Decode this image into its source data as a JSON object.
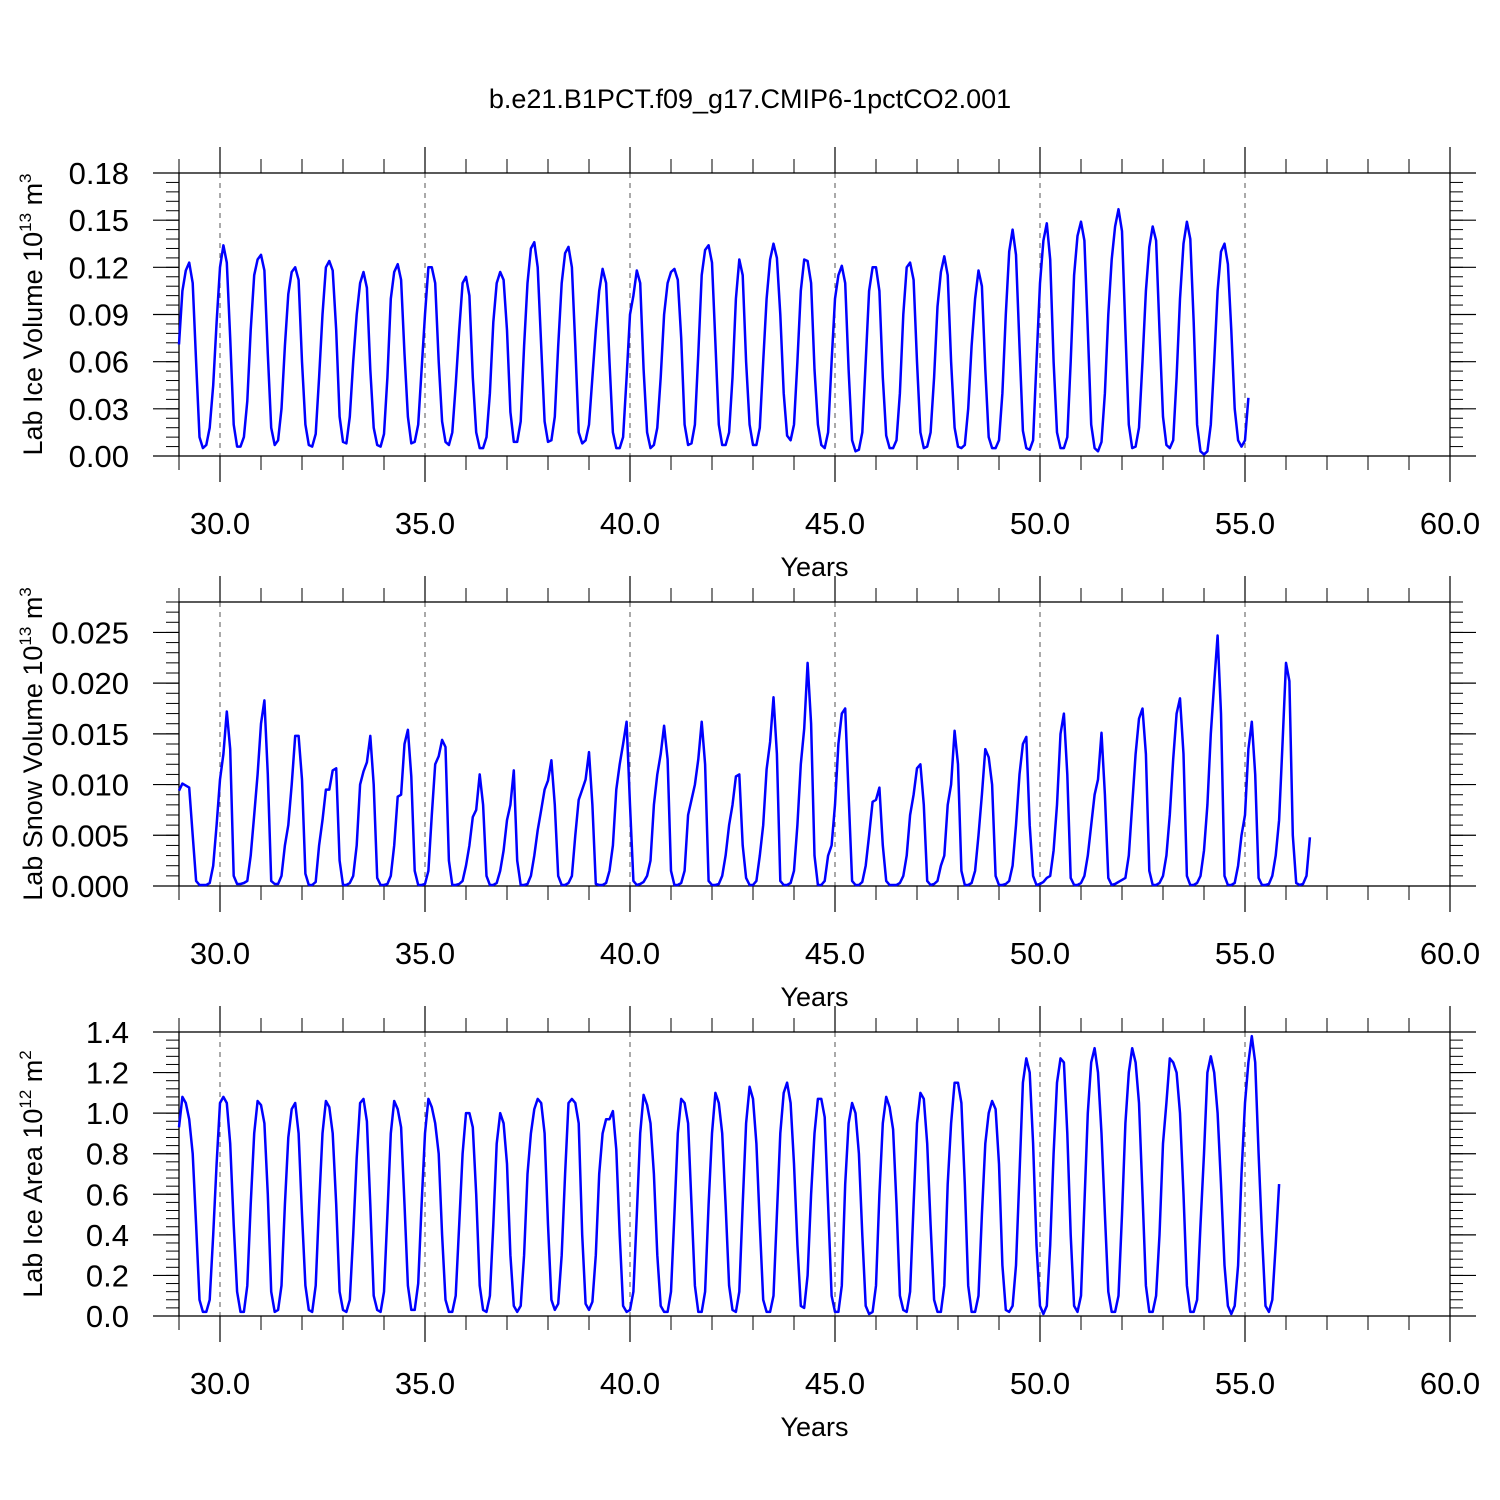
{
  "title": "b.e21.B1PCT.f09_g17.CMIP6-1pctCO2.001",
  "line_color": "#0000ff",
  "chart_data": [
    {
      "type": "line",
      "xlabel": "Years",
      "ylabel": {
        "text": "Lab Ice Volume 10",
        "exp": "13",
        "unit": " m",
        "unit_exp": "3"
      },
      "xlim": [
        29.0,
        60.0
      ],
      "ylim": [
        0.0,
        0.18
      ],
      "x_ticks": [
        30,
        35,
        40,
        45,
        50,
        55,
        60
      ],
      "x_tick_labels": [
        "30.0",
        "35.0",
        "40.0",
        "45.0",
        "50.0",
        "55.0",
        "60.0"
      ],
      "y_ticks": [
        0.0,
        0.03,
        0.06,
        0.09,
        0.12,
        0.15,
        0.18
      ],
      "y_tick_labels": [
        "0.00",
        "0.03",
        "0.06",
        "0.09",
        "0.12",
        "0.15",
        "0.18"
      ],
      "x_start": 29.0,
      "x_step": 0.08333,
      "values": [
        0.071,
        0.105,
        0.118,
        0.123,
        0.11,
        0.06,
        0.012,
        0.005,
        0.007,
        0.018,
        0.045,
        0.085,
        0.12,
        0.134,
        0.123,
        0.075,
        0.02,
        0.006,
        0.006,
        0.012,
        0.035,
        0.08,
        0.115,
        0.125,
        0.128,
        0.118,
        0.065,
        0.018,
        0.007,
        0.01,
        0.03,
        0.07,
        0.103,
        0.117,
        0.12,
        0.112,
        0.06,
        0.02,
        0.007,
        0.006,
        0.014,
        0.05,
        0.09,
        0.12,
        0.124,
        0.118,
        0.08,
        0.025,
        0.009,
        0.008,
        0.025,
        0.06,
        0.09,
        0.11,
        0.117,
        0.107,
        0.055,
        0.018,
        0.007,
        0.006,
        0.014,
        0.05,
        0.1,
        0.117,
        0.122,
        0.112,
        0.065,
        0.025,
        0.008,
        0.009,
        0.02,
        0.055,
        0.09,
        0.12,
        0.12,
        0.11,
        0.06,
        0.022,
        0.009,
        0.007,
        0.015,
        0.045,
        0.08,
        0.11,
        0.114,
        0.102,
        0.05,
        0.015,
        0.005,
        0.005,
        0.012,
        0.04,
        0.085,
        0.11,
        0.117,
        0.112,
        0.08,
        0.028,
        0.009,
        0.009,
        0.022,
        0.07,
        0.11,
        0.132,
        0.136,
        0.12,
        0.07,
        0.022,
        0.009,
        0.01,
        0.025,
        0.07,
        0.11,
        0.129,
        0.133,
        0.12,
        0.07,
        0.015,
        0.008,
        0.01,
        0.02,
        0.05,
        0.08,
        0.105,
        0.119,
        0.11,
        0.06,
        0.015,
        0.005,
        0.005,
        0.012,
        0.05,
        0.09,
        0.102,
        0.118,
        0.11,
        0.055,
        0.015,
        0.005,
        0.007,
        0.018,
        0.05,
        0.09,
        0.11,
        0.117,
        0.119,
        0.112,
        0.075,
        0.02,
        0.007,
        0.008,
        0.02,
        0.065,
        0.115,
        0.131,
        0.134,
        0.123,
        0.072,
        0.02,
        0.007,
        0.007,
        0.015,
        0.05,
        0.1,
        0.125,
        0.115,
        0.06,
        0.02,
        0.007,
        0.007,
        0.018,
        0.06,
        0.1,
        0.125,
        0.135,
        0.126,
        0.09,
        0.04,
        0.013,
        0.01,
        0.02,
        0.06,
        0.105,
        0.125,
        0.124,
        0.11,
        0.055,
        0.02,
        0.007,
        0.005,
        0.015,
        0.06,
        0.1,
        0.115,
        0.121,
        0.11,
        0.055,
        0.01,
        0.003,
        0.004,
        0.015,
        0.06,
        0.105,
        0.12,
        0.12,
        0.105,
        0.05,
        0.013,
        0.005,
        0.005,
        0.01,
        0.04,
        0.09,
        0.12,
        0.123,
        0.112,
        0.06,
        0.015,
        0.005,
        0.006,
        0.015,
        0.05,
        0.095,
        0.117,
        0.127,
        0.115,
        0.06,
        0.018,
        0.006,
        0.005,
        0.007,
        0.03,
        0.07,
        0.1,
        0.118,
        0.108,
        0.055,
        0.012,
        0.005,
        0.005,
        0.01,
        0.04,
        0.09,
        0.13,
        0.144,
        0.128,
        0.07,
        0.016,
        0.005,
        0.004,
        0.01,
        0.06,
        0.11,
        0.137,
        0.148,
        0.125,
        0.06,
        0.015,
        0.005,
        0.005,
        0.012,
        0.06,
        0.115,
        0.14,
        0.149,
        0.137,
        0.08,
        0.02,
        0.005,
        0.003,
        0.009,
        0.04,
        0.09,
        0.125,
        0.146,
        0.157,
        0.143,
        0.08,
        0.02,
        0.005,
        0.006,
        0.018,
        0.06,
        0.105,
        0.133,
        0.146,
        0.137,
        0.08,
        0.025,
        0.007,
        0.005,
        0.01,
        0.05,
        0.1,
        0.135,
        0.149,
        0.138,
        0.085,
        0.02,
        0.003,
        0.001,
        0.003,
        0.02,
        0.06,
        0.105,
        0.13,
        0.135,
        0.122,
        0.08,
        0.03,
        0.01,
        0.006,
        0.01,
        0.037
      ]
    },
    {
      "type": "line",
      "xlabel": "Years",
      "ylabel": {
        "text": "Lab Snow Volume 10",
        "exp": "13",
        "unit": " m",
        "unit_exp": "3"
      },
      "xlim": [
        29.0,
        60.0
      ],
      "ylim": [
        0.0,
        0.028
      ],
      "x_ticks": [
        30,
        35,
        40,
        45,
        50,
        55,
        60
      ],
      "x_tick_labels": [
        "30.0",
        "35.0",
        "40.0",
        "45.0",
        "50.0",
        "55.0",
        "60.0"
      ],
      "y_ticks": [
        0.0,
        0.005,
        0.01,
        0.015,
        0.02,
        0.025
      ],
      "y_tick_labels": [
        "0.000",
        "0.005",
        "0.010",
        "0.015",
        "0.020",
        "0.025"
      ],
      "x_start": 29.0,
      "x_step": 0.08333,
      "values": [
        0.0094,
        0.0101,
        0.0099,
        0.0097,
        0.005,
        0.0005,
        0.0001,
        0.0001,
        0.0001,
        0.0003,
        0.002,
        0.006,
        0.0105,
        0.013,
        0.0172,
        0.0135,
        0.001,
        0.0002,
        0.0002,
        0.0003,
        0.0005,
        0.003,
        0.007,
        0.011,
        0.016,
        0.0183,
        0.011,
        0.0005,
        0.0002,
        0.0002,
        0.001,
        0.004,
        0.006,
        0.01,
        0.0148,
        0.0148,
        0.0105,
        0.0012,
        0.0001,
        0.0001,
        0.0004,
        0.004,
        0.0065,
        0.0095,
        0.0095,
        0.0114,
        0.0116,
        0.0025,
        0.0001,
        0.0001,
        0.0003,
        0.001,
        0.004,
        0.01,
        0.0113,
        0.0122,
        0.0148,
        0.01,
        0.0008,
        0.0001,
        0.0001,
        0.0002,
        0.001,
        0.004,
        0.0088,
        0.009,
        0.014,
        0.0154,
        0.0108,
        0.0015,
        0.0001,
        0.0001,
        0.0002,
        0.0015,
        0.007,
        0.012,
        0.0128,
        0.0144,
        0.0137,
        0.0025,
        0.0001,
        0.0001,
        0.0002,
        0.0005,
        0.002,
        0.004,
        0.0068,
        0.0075,
        0.011,
        0.008,
        0.001,
        0.0001,
        0.0001,
        0.0003,
        0.0015,
        0.0035,
        0.0065,
        0.008,
        0.0114,
        0.0025,
        0.0001,
        0.0001,
        0.0002,
        0.001,
        0.003,
        0.0055,
        0.0075,
        0.0095,
        0.0104,
        0.0124,
        0.008,
        0.001,
        0.0001,
        0.0001,
        0.0003,
        0.001,
        0.005,
        0.0085,
        0.0095,
        0.0105,
        0.0132,
        0.008,
        0.0002,
        0.0001,
        0.0001,
        0.0003,
        0.0015,
        0.004,
        0.0095,
        0.012,
        0.014,
        0.0162,
        0.008,
        0.0005,
        0.0001,
        0.0002,
        0.0004,
        0.001,
        0.0025,
        0.008,
        0.011,
        0.013,
        0.0158,
        0.0125,
        0.0015,
        0.0001,
        0.0001,
        0.0003,
        0.0015,
        0.007,
        0.0085,
        0.01,
        0.0125,
        0.0162,
        0.012,
        0.0005,
        0.0001,
        0.0001,
        0.0002,
        0.001,
        0.003,
        0.006,
        0.008,
        0.0108,
        0.011,
        0.004,
        0.0008,
        0.0001,
        0.0001,
        0.0005,
        0.003,
        0.006,
        0.0115,
        0.0142,
        0.0186,
        0.013,
        0.0005,
        0.0001,
        0.0001,
        0.0003,
        0.0015,
        0.006,
        0.012,
        0.0155,
        0.022,
        0.016,
        0.003,
        0.0001,
        0.0001,
        0.0005,
        0.003,
        0.004,
        0.008,
        0.014,
        0.017,
        0.0175,
        0.009,
        0.0005,
        0.0001,
        0.0001,
        0.0004,
        0.002,
        0.005,
        0.0083,
        0.0085,
        0.0097,
        0.004,
        0.0005,
        0.0001,
        0.0001,
        0.0001,
        0.0003,
        0.001,
        0.003,
        0.007,
        0.009,
        0.0116,
        0.012,
        0.008,
        0.0005,
        0.0001,
        0.0002,
        0.0005,
        0.002,
        0.003,
        0.008,
        0.01,
        0.0153,
        0.012,
        0.0015,
        0.0001,
        0.0001,
        0.0003,
        0.0015,
        0.005,
        0.009,
        0.0135,
        0.0127,
        0.01,
        0.001,
        0.0001,
        0.0001,
        0.0002,
        0.0005,
        0.002,
        0.006,
        0.011,
        0.014,
        0.0147,
        0.006,
        0.001,
        0.0001,
        0.0002,
        0.0004,
        0.0008,
        0.001,
        0.0035,
        0.008,
        0.015,
        0.017,
        0.011,
        0.0008,
        0.0001,
        0.0001,
        0.0003,
        0.001,
        0.003,
        0.006,
        0.009,
        0.0105,
        0.0151,
        0.009,
        0.0008,
        0.0001,
        0.0002,
        0.0004,
        0.0006,
        0.0008,
        0.003,
        0.008,
        0.013,
        0.0165,
        0.0175,
        0.013,
        0.0015,
        0.0001,
        0.0001,
        0.0003,
        0.001,
        0.003,
        0.007,
        0.0125,
        0.017,
        0.0185,
        0.013,
        0.001,
        0.0001,
        0.0001,
        0.0003,
        0.001,
        0.0035,
        0.008,
        0.015,
        0.02,
        0.0247,
        0.017,
        0.001,
        0.0001,
        0.0001,
        0.0003,
        0.002,
        0.005,
        0.007,
        0.0135,
        0.0162,
        0.011,
        0.0008,
        0.0001,
        0.0001,
        0.0002,
        0.001,
        0.003,
        0.0065,
        0.014,
        0.022,
        0.0202,
        0.005,
        0.0003,
        0.0001,
        0.0002,
        0.001,
        0.0048
      ]
    },
    {
      "type": "line",
      "xlabel": "Years",
      "ylabel": {
        "text": "Lab Ice Area 10",
        "exp": "12",
        "unit": " m",
        "unit_exp": "2"
      },
      "xlim": [
        29.0,
        60.0
      ],
      "ylim": [
        0.0,
        1.4
      ],
      "x_ticks": [
        30,
        35,
        40,
        45,
        50,
        55,
        60
      ],
      "x_tick_labels": [
        "30.0",
        "35.0",
        "40.0",
        "45.0",
        "50.0",
        "55.0",
        "60.0"
      ],
      "y_ticks": [
        0.0,
        0.2,
        0.4,
        0.6,
        0.8,
        1.0,
        1.2,
        1.4
      ],
      "y_tick_labels": [
        "0.0",
        "0.2",
        "0.4",
        "0.6",
        "0.8",
        "1.0",
        "1.2",
        "1.4"
      ],
      "x_start": 29.0,
      "x_step": 0.08333,
      "values": [
        0.93,
        1.08,
        1.05,
        0.97,
        0.8,
        0.45,
        0.08,
        0.02,
        0.02,
        0.08,
        0.4,
        0.75,
        1.05,
        1.08,
        1.05,
        0.85,
        0.45,
        0.12,
        0.02,
        0.02,
        0.15,
        0.55,
        0.9,
        1.06,
        1.04,
        0.95,
        0.6,
        0.12,
        0.02,
        0.03,
        0.15,
        0.55,
        0.88,
        1.02,
        1.05,
        0.9,
        0.5,
        0.15,
        0.03,
        0.02,
        0.15,
        0.55,
        0.9,
        1.06,
        1.03,
        0.9,
        0.55,
        0.12,
        0.03,
        0.02,
        0.08,
        0.4,
        0.78,
        1.05,
        1.07,
        0.96,
        0.55,
        0.1,
        0.03,
        0.02,
        0.12,
        0.5,
        0.9,
        1.06,
        1.02,
        0.93,
        0.55,
        0.15,
        0.03,
        0.03,
        0.16,
        0.55,
        0.9,
        1.07,
        1.03,
        0.95,
        0.8,
        0.4,
        0.08,
        0.02,
        0.02,
        0.1,
        0.45,
        0.8,
        1.0,
        1.0,
        0.93,
        0.6,
        0.15,
        0.03,
        0.02,
        0.1,
        0.45,
        0.85,
        1.0,
        0.95,
        0.75,
        0.3,
        0.05,
        0.02,
        0.05,
        0.3,
        0.7,
        0.9,
        1.02,
        1.07,
        1.05,
        0.9,
        0.45,
        0.08,
        0.03,
        0.06,
        0.3,
        0.7,
        1.05,
        1.07,
        1.05,
        0.95,
        0.4,
        0.06,
        0.03,
        0.07,
        0.3,
        0.7,
        0.9,
        0.97,
        0.97,
        1.01,
        0.82,
        0.4,
        0.05,
        0.02,
        0.03,
        0.12,
        0.5,
        0.9,
        1.09,
        1.04,
        0.95,
        0.7,
        0.3,
        0.05,
        0.02,
        0.02,
        0.12,
        0.5,
        0.9,
        1.07,
        1.05,
        0.95,
        0.55,
        0.15,
        0.02,
        0.02,
        0.12,
        0.55,
        0.9,
        1.1,
        1.05,
        0.9,
        0.55,
        0.15,
        0.03,
        0.02,
        0.12,
        0.55,
        0.95,
        1.13,
        1.07,
        0.85,
        0.45,
        0.08,
        0.02,
        0.02,
        0.1,
        0.5,
        0.9,
        1.1,
        1.15,
        1.05,
        0.75,
        0.35,
        0.05,
        0.04,
        0.2,
        0.6,
        0.9,
        1.07,
        1.07,
        0.98,
        0.55,
        0.1,
        0.02,
        0.02,
        0.15,
        0.65,
        0.95,
        1.05,
        1.0,
        0.8,
        0.4,
        0.05,
        0.01,
        0.02,
        0.15,
        0.6,
        0.95,
        1.08,
        1.03,
        0.92,
        0.55,
        0.1,
        0.03,
        0.02,
        0.12,
        0.55,
        0.95,
        1.1,
        1.07,
        0.85,
        0.45,
        0.08,
        0.02,
        0.02,
        0.15,
        0.65,
        0.95,
        1.15,
        1.15,
        1.05,
        0.65,
        0.15,
        0.02,
        0.02,
        0.1,
        0.5,
        0.85,
        1.0,
        1.06,
        1.02,
        0.75,
        0.25,
        0.03,
        0.02,
        0.05,
        0.25,
        0.7,
        1.15,
        1.27,
        1.2,
        0.85,
        0.35,
        0.05,
        0.01,
        0.05,
        0.35,
        0.8,
        1.15,
        1.27,
        1.25,
        0.9,
        0.4,
        0.05,
        0.02,
        0.1,
        0.55,
        1.0,
        1.25,
        1.32,
        1.2,
        0.9,
        0.5,
        0.12,
        0.02,
        0.02,
        0.1,
        0.5,
        0.95,
        1.2,
        1.32,
        1.25,
        1.05,
        0.6,
        0.15,
        0.02,
        0.02,
        0.1,
        0.4,
        0.85,
        1.05,
        1.27,
        1.25,
        1.2,
        1.0,
        0.6,
        0.15,
        0.02,
        0.02,
        0.08,
        0.45,
        0.8,
        1.2,
        1.28,
        1.2,
        1.0,
        0.65,
        0.25,
        0.05,
        0.01,
        0.05,
        0.25,
        0.7,
        1.05,
        1.25,
        1.38,
        1.25,
        0.8,
        0.4,
        0.05,
        0.02,
        0.08,
        0.35,
        0.65
      ]
    }
  ]
}
